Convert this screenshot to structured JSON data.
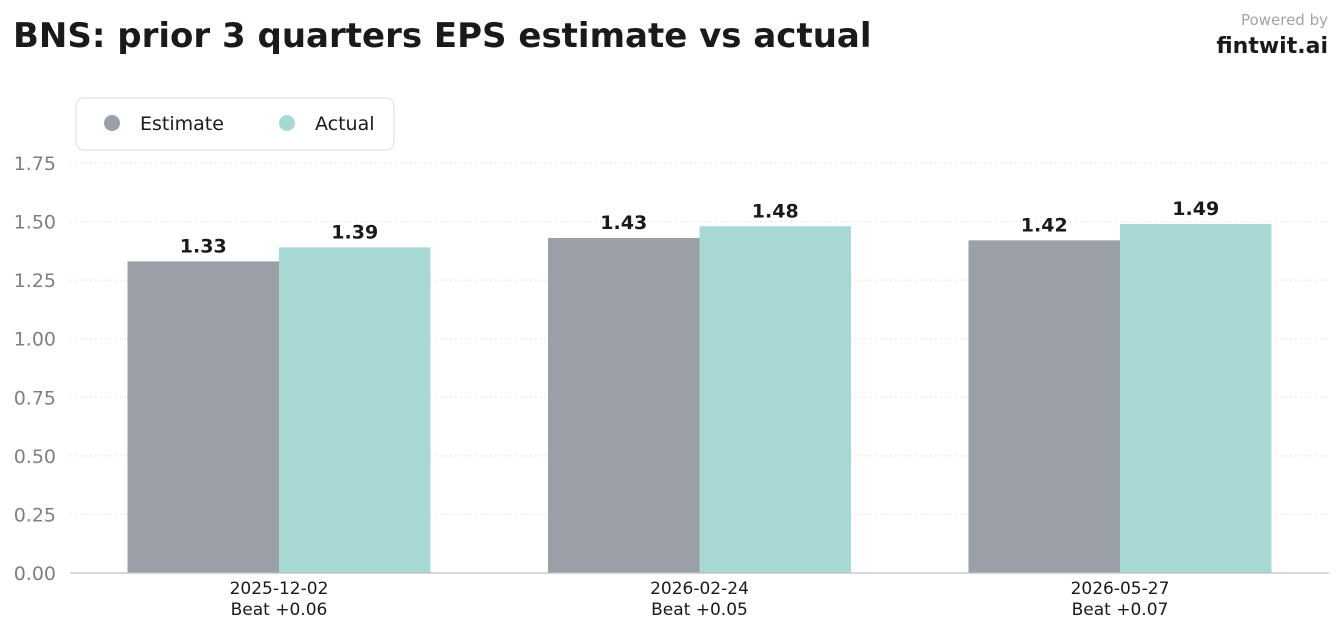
{
  "chart_data": {
    "type": "bar",
    "title": "BNS: prior 3 quarters EPS estimate vs actual",
    "categories": [
      "2025-12-02",
      "2026-02-24",
      "2026-05-27"
    ],
    "category_sublabels": [
      "Beat +0.06",
      "Beat +0.05",
      "Beat +0.07"
    ],
    "series": [
      {
        "name": "Estimate",
        "values": [
          1.33,
          1.43,
          1.42
        ],
        "color": "#9ba0a8"
      },
      {
        "name": "Actual",
        "values": [
          1.39,
          1.48,
          1.49
        ],
        "color": "#a8d8d4"
      }
    ],
    "data_labels": [
      [
        "1.33",
        "1.43",
        "1.42"
      ],
      [
        "1.39",
        "1.48",
        "1.49"
      ]
    ],
    "ylim": [
      0,
      1.75
    ],
    "yticks": [
      0.0,
      0.25,
      0.5,
      0.75,
      1.0,
      1.25,
      1.5,
      1.75
    ],
    "ytick_labels": [
      "0.00",
      "0.25",
      "0.50",
      "0.75",
      "1.00",
      "1.25",
      "1.50",
      "1.75"
    ],
    "xlabel": "",
    "ylabel": "",
    "grid": "horizontal-dotted",
    "legend_position": "top-left"
  },
  "branding": {
    "powered_by": "Powered by",
    "brand": "fintwit.ai"
  },
  "colors": {
    "title": "#1a1a1a",
    "tick_label": "#808080",
    "grid": "#e2e2e2",
    "axis": "#bfbfbf",
    "powered_by": "#a0a4aa"
  }
}
